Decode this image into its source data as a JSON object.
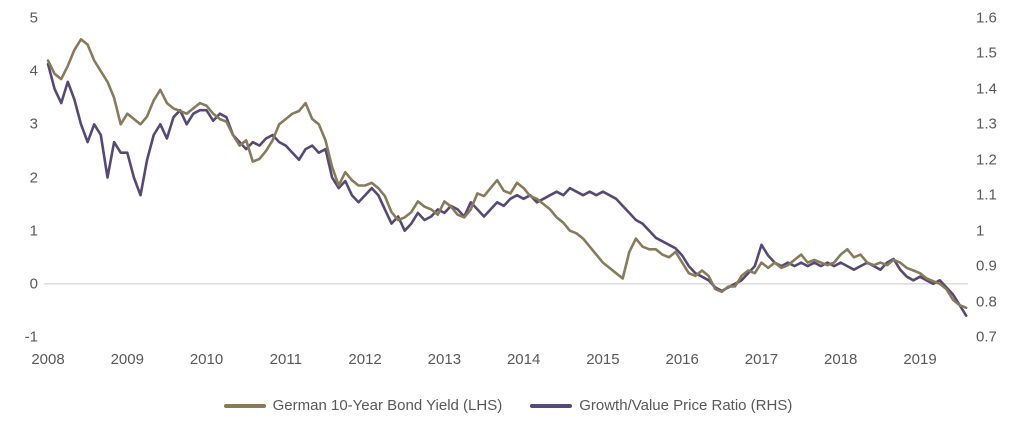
{
  "chart_data": {
    "type": "line",
    "title": "",
    "x_start_year": 2008,
    "points_per_year": 12,
    "x_tick_labels": [
      "2008",
      "2009",
      "2010",
      "2011",
      "2012",
      "2013",
      "2014",
      "2015",
      "2016",
      "2017",
      "2018",
      "2019"
    ],
    "left_axis": {
      "min": -1,
      "max": 5,
      "ticks": [
        "5",
        "4",
        "3",
        "2",
        "1",
        "0",
        "-1"
      ]
    },
    "right_axis": {
      "min": 0.7,
      "max": 1.6,
      "ticks": [
        "1.6",
        "1.5",
        "1.4",
        "1.3",
        "1.2",
        "1.1",
        "1",
        "0.9",
        "0.8",
        "0.7"
      ]
    },
    "zero_line_color": "#d9d9d9",
    "legend_position": "bottom",
    "grid": "zero-line-only",
    "series": [
      {
        "name": "German 10-Year Bond Yield (LHS)",
        "axis": "left",
        "color": "#8a7a5c",
        "values": [
          4.2,
          3.95,
          3.85,
          4.1,
          4.4,
          4.6,
          4.5,
          4.2,
          4.0,
          3.8,
          3.5,
          3.0,
          3.2,
          3.1,
          3.0,
          3.15,
          3.45,
          3.65,
          3.4,
          3.3,
          3.25,
          3.2,
          3.3,
          3.4,
          3.35,
          3.2,
          3.1,
          3.05,
          2.8,
          2.6,
          2.7,
          2.3,
          2.35,
          2.5,
          2.7,
          3.0,
          3.1,
          3.2,
          3.25,
          3.4,
          3.1,
          3.0,
          2.7,
          2.2,
          1.85,
          2.1,
          1.95,
          1.85,
          1.85,
          1.9,
          1.8,
          1.65,
          1.35,
          1.2,
          1.25,
          1.35,
          1.55,
          1.45,
          1.4,
          1.3,
          1.55,
          1.45,
          1.3,
          1.25,
          1.4,
          1.7,
          1.65,
          1.8,
          1.95,
          1.75,
          1.7,
          1.9,
          1.8,
          1.65,
          1.6,
          1.5,
          1.4,
          1.25,
          1.15,
          1.0,
          0.95,
          0.85,
          0.7,
          0.55,
          0.4,
          0.3,
          0.2,
          0.1,
          0.6,
          0.85,
          0.7,
          0.65,
          0.65,
          0.55,
          0.5,
          0.6,
          0.4,
          0.2,
          0.15,
          0.25,
          0.15,
          -0.1,
          -0.15,
          -0.05,
          -0.05,
          0.15,
          0.25,
          0.2,
          0.4,
          0.3,
          0.4,
          0.3,
          0.35,
          0.45,
          0.55,
          0.4,
          0.45,
          0.4,
          0.35,
          0.4,
          0.55,
          0.65,
          0.5,
          0.55,
          0.4,
          0.35,
          0.4,
          0.35,
          0.45,
          0.4,
          0.3,
          0.25,
          0.2,
          0.1,
          0.05,
          0.0,
          -0.1,
          -0.3,
          -0.4,
          -0.45
        ]
      },
      {
        "name": "Growth/Value Price Ratio (RHS)",
        "axis": "right",
        "color": "#564a74",
        "values": [
          1.47,
          1.4,
          1.36,
          1.42,
          1.37,
          1.3,
          1.25,
          1.3,
          1.27,
          1.15,
          1.25,
          1.22,
          1.22,
          1.15,
          1.1,
          1.2,
          1.27,
          1.3,
          1.26,
          1.32,
          1.34,
          1.3,
          1.33,
          1.34,
          1.34,
          1.31,
          1.33,
          1.32,
          1.27,
          1.25,
          1.23,
          1.25,
          1.24,
          1.26,
          1.27,
          1.25,
          1.24,
          1.22,
          1.2,
          1.23,
          1.24,
          1.22,
          1.23,
          1.15,
          1.12,
          1.14,
          1.1,
          1.08,
          1.1,
          1.12,
          1.1,
          1.06,
          1.02,
          1.04,
          1.0,
          1.02,
          1.05,
          1.03,
          1.04,
          1.06,
          1.05,
          1.07,
          1.06,
          1.04,
          1.08,
          1.06,
          1.04,
          1.06,
          1.08,
          1.07,
          1.09,
          1.1,
          1.09,
          1.1,
          1.08,
          1.09,
          1.1,
          1.11,
          1.1,
          1.12,
          1.11,
          1.1,
          1.11,
          1.1,
          1.11,
          1.1,
          1.09,
          1.07,
          1.05,
          1.03,
          1.02,
          1.0,
          0.98,
          0.97,
          0.96,
          0.95,
          0.93,
          0.9,
          0.88,
          0.87,
          0.86,
          0.84,
          0.83,
          0.84,
          0.85,
          0.86,
          0.88,
          0.9,
          0.96,
          0.93,
          0.91,
          0.9,
          0.91,
          0.9,
          0.91,
          0.9,
          0.91,
          0.9,
          0.91,
          0.9,
          0.91,
          0.9,
          0.89,
          0.9,
          0.91,
          0.9,
          0.89,
          0.91,
          0.92,
          0.89,
          0.87,
          0.86,
          0.87,
          0.86,
          0.85,
          0.86,
          0.84,
          0.82,
          0.79,
          0.76
        ]
      }
    ]
  }
}
